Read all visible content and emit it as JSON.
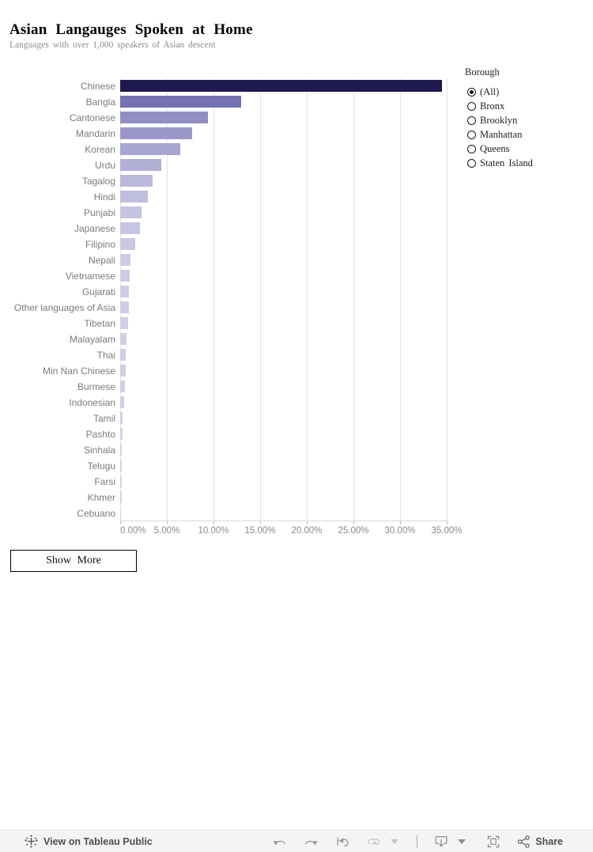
{
  "header": {
    "title": "Asian Langauges Spoken at Home",
    "subtitle": "Languages with over 1,000 speakers of Asian descent"
  },
  "chart_data": {
    "type": "bar",
    "orientation": "horizontal",
    "title": "Asian Langauges Spoken at Home",
    "xlabel": "",
    "ylabel": "",
    "xlim": [
      0,
      35.3
    ],
    "grid": true,
    "x_ticks": [
      "0.00%",
      "5.00%",
      "10.00%",
      "15.00%",
      "20.00%",
      "25.00%",
      "30.00%",
      "35.00%"
    ],
    "x_tick_values": [
      0,
      5,
      10,
      15,
      20,
      25,
      30,
      35
    ],
    "categories": [
      "Chinese",
      "Bangla",
      "Cantonese",
      "Mandarin",
      "Korean",
      "Urdu",
      "Tagalog",
      "Hindi",
      "Punjabi",
      "Japanese",
      "Filipino",
      "Nepali",
      "Vietnamese",
      "Gujarati",
      "Other languages of Asia",
      "Tibetan",
      "Malayalam",
      "Thai",
      "Min Nan Chinese",
      "Burmese",
      "Indonesian",
      "Tamil",
      "Pashto",
      "Sinhala",
      "Telugu",
      "Farsi",
      "Khmer",
      "Cebuano"
    ],
    "values": [
      34.5,
      13.0,
      9.4,
      7.7,
      6.4,
      4.4,
      3.5,
      3.0,
      2.3,
      2.1,
      1.6,
      1.1,
      1.0,
      0.97,
      0.95,
      0.85,
      0.71,
      0.62,
      0.57,
      0.55,
      0.4,
      0.24,
      0.22,
      0.2,
      0.17,
      0.15,
      0.14,
      0.06
    ],
    "bar_colors": [
      "#1e1a4e",
      "#7470b2",
      "#918ec3",
      "#9b98c9",
      "#a7a5d1",
      "#b2b0d7",
      "#bab8db",
      "#c0bede",
      "#c5c4e1",
      "#c7c6e2",
      "#cac9e4",
      "#cdcce5",
      "#cecde6",
      "#cecde6",
      "#cecde6",
      "#cfcee6",
      "#d0cfe7",
      "#d0cfe7",
      "#d1d0e7",
      "#d1d0e7",
      "#d1d0e7",
      "#d2d1e8",
      "#d2d1e8",
      "#d2d1e8",
      "#d2d1e8",
      "#d2d1e8",
      "#d2d1e8",
      "#d2d1e8"
    ]
  },
  "filter": {
    "title": "Borough",
    "options": [
      {
        "label": "(All)",
        "selected": true
      },
      {
        "label": "Bronx",
        "selected": false
      },
      {
        "label": "Brooklyn",
        "selected": false
      },
      {
        "label": "Manhattan",
        "selected": false
      },
      {
        "label": "Queens",
        "selected": false
      },
      {
        "label": "Staten Island",
        "selected": false
      }
    ]
  },
  "show_more_label": "Show More",
  "footer": {
    "view_label": "View on Tableau Public",
    "share_label": "Share",
    "colors": {
      "icon": "#8f8f8f",
      "icon_disabled": "#c6c6c6",
      "text": "#4e4e4e"
    }
  }
}
